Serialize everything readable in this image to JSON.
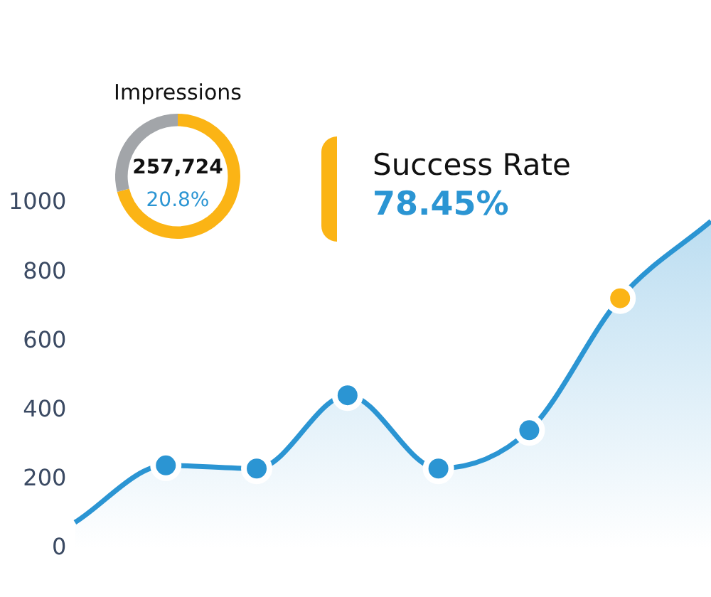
{
  "chart_data": [
    {
      "type": "area",
      "categories": [
        null,
        null,
        null,
        null,
        null,
        null,
        null,
        null
      ],
      "series": [
        {
          "color": "#2b95d3",
          "colors": [
            null,
            "#2b95d3",
            "#2b95d3",
            "#2b95d3",
            "#2b95d3",
            "#2b95d3",
            "#fbb415",
            null
          ],
          "values": [
            76,
            241,
            232,
            444,
            232,
            343,
            725,
            948
          ]
        }
      ],
      "ylim": [
        0,
        1000
      ],
      "yticks": [
        0,
        200,
        400,
        600,
        800,
        1000
      ],
      "grid": false,
      "legend": false,
      "marker": "circle",
      "tick_labels": "y"
    },
    {
      "type": "donut",
      "title": "Impressions",
      "categories": [
        null,
        null
      ],
      "values": [
        71,
        29
      ],
      "colors": [
        "#fbb415",
        "#a2a5a9"
      ],
      "annotations": [
        "257,724",
        "20.8%"
      ],
      "legend": false
    },
    {
      "type": "other",
      "title": "Success Rate",
      "annotations": [
        "78.45%"
      ]
    }
  ]
}
